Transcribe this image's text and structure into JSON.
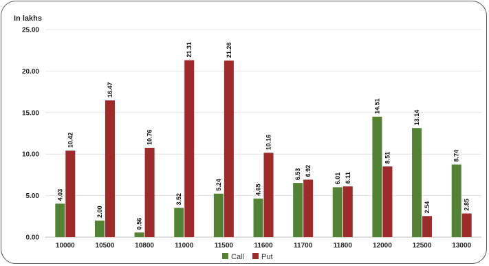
{
  "chart_data": {
    "type": "bar",
    "unit_label": "In lakhs",
    "categories": [
      "10000",
      "10500",
      "10800",
      "11000",
      "11500",
      "11600",
      "11700",
      "11800",
      "12000",
      "12500",
      "13000"
    ],
    "series": [
      {
        "name": "Call",
        "color": "#548235",
        "values": [
          4.03,
          2.0,
          0.56,
          3.52,
          5.24,
          4.65,
          6.53,
          6.01,
          14.51,
          13.14,
          8.74
        ]
      },
      {
        "name": "Put",
        "color": "#9E2A2B",
        "values": [
          10.42,
          16.47,
          10.76,
          21.31,
          21.26,
          10.16,
          6.92,
          6.11,
          8.51,
          2.54,
          2.85
        ]
      }
    ],
    "ylim": [
      0,
      25
    ],
    "yticks": [
      "0.00",
      "5.00",
      "10.00",
      "15.00",
      "20.00",
      "25.00"
    ],
    "grid": true,
    "legend_position": "bottom"
  }
}
